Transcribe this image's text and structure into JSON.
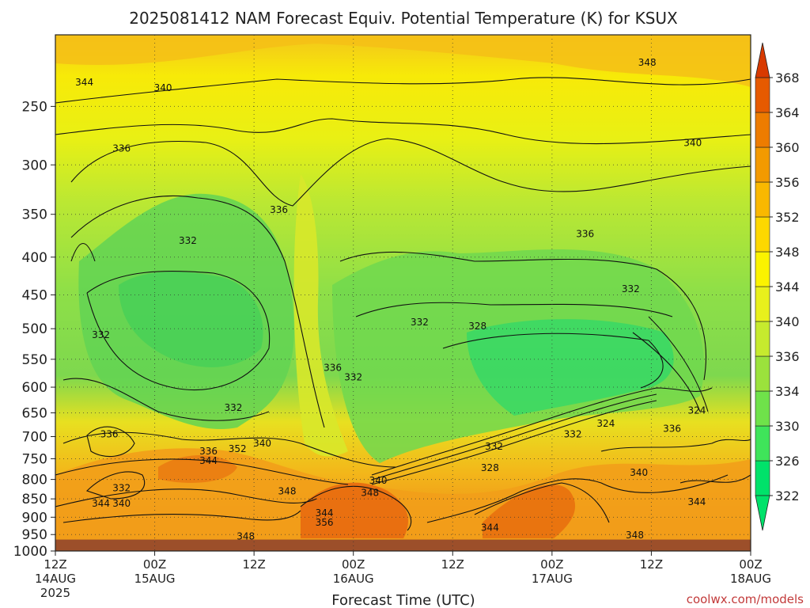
{
  "chart_data": {
    "type": "heatmap",
    "title": "2025081412 NAM Forecast Equiv. Potential Temperature (K) for KSUX",
    "xlabel": "Forecast Time (UTC)",
    "credit": "coolwx.com/models",
    "y_ticks": [
      250,
      300,
      350,
      400,
      450,
      500,
      550,
      600,
      650,
      700,
      750,
      800,
      850,
      900,
      950,
      1000
    ],
    "ylim": [
      200,
      1000
    ],
    "y_scale": "log-pressure (inverted)",
    "x_ticks": [
      {
        "hour": 0,
        "top": "12Z",
        "mid": "14AUG",
        "bot": "2025"
      },
      {
        "hour": 12,
        "top": "00Z",
        "mid": "15AUG",
        "bot": ""
      },
      {
        "hour": 24,
        "top": "12Z",
        "mid": "",
        "bot": ""
      },
      {
        "hour": 36,
        "top": "00Z",
        "mid": "16AUG",
        "bot": ""
      },
      {
        "hour": 48,
        "top": "12Z",
        "mid": "",
        "bot": ""
      },
      {
        "hour": 60,
        "top": "00Z",
        "mid": "17AUG",
        "bot": ""
      },
      {
        "hour": 72,
        "top": "12Z",
        "mid": "",
        "bot": ""
      },
      {
        "hour": 84,
        "top": "00Z",
        "mid": "18AUG",
        "bot": ""
      }
    ],
    "xlim": [
      0,
      84
    ],
    "grid": true,
    "ground_pressure": 965,
    "colorbar": {
      "levels": [
        322,
        326,
        330,
        334,
        336,
        340,
        344,
        348,
        352,
        356,
        360,
        364,
        368
      ],
      "colors": [
        "#00e26a",
        "#3fe45a",
        "#6fe24a",
        "#9be23c",
        "#c6ea2e",
        "#e8f01c",
        "#fbf300",
        "#fdd800",
        "#f9b800",
        "#f39a00",
        "#ed7c00",
        "#e65a00",
        "#d83a00"
      ],
      "positions": "right"
    },
    "contour_labels": [
      {
        "value": "344",
        "hour": 3.5,
        "p": 232
      },
      {
        "value": "340",
        "hour": 13,
        "p": 236
      },
      {
        "value": "348",
        "hour": 71.5,
        "p": 218
      },
      {
        "value": "336",
        "hour": 8,
        "p": 285
      },
      {
        "value": "340",
        "hour": 77,
        "p": 280
      },
      {
        "value": "336",
        "hour": 27,
        "p": 345
      },
      {
        "value": "332",
        "hour": 16,
        "p": 380
      },
      {
        "value": "336",
        "hour": 64,
        "p": 372
      },
      {
        "value": "332",
        "hour": 69.5,
        "p": 442
      },
      {
        "value": "332",
        "hour": 5.5,
        "p": 510
      },
      {
        "value": "332",
        "hour": 44,
        "p": 490
      },
      {
        "value": "328",
        "hour": 51,
        "p": 496
      },
      {
        "value": "336",
        "hour": 33.5,
        "p": 565
      },
      {
        "value": "332",
        "hour": 36,
        "p": 582
      },
      {
        "value": "332",
        "hour": 21.5,
        "p": 640
      },
      {
        "value": "324",
        "hour": 77.5,
        "p": 645
      },
      {
        "value": "336",
        "hour": 6.5,
        "p": 695
      },
      {
        "value": "324",
        "hour": 66.5,
        "p": 672
      },
      {
        "value": "336",
        "hour": 74.5,
        "p": 683
      },
      {
        "value": "332",
        "hour": 62.5,
        "p": 695
      },
      {
        "value": "340",
        "hour": 25,
        "p": 715
      },
      {
        "value": "352",
        "hour": 22,
        "p": 727
      },
      {
        "value": "336",
        "hour": 18.5,
        "p": 733
      },
      {
        "value": "332",
        "hour": 53,
        "p": 722
      },
      {
        "value": "344",
        "hour": 18.5,
        "p": 755
      },
      {
        "value": "328",
        "hour": 52.5,
        "p": 772
      },
      {
        "value": "340",
        "hour": 70.5,
        "p": 783
      },
      {
        "value": "340",
        "hour": 39,
        "p": 803
      },
      {
        "value": "332",
        "hour": 8,
        "p": 822
      },
      {
        "value": "348",
        "hour": 28,
        "p": 830
      },
      {
        "value": "348",
        "hour": 38,
        "p": 834
      },
      {
        "value": "344",
        "hour": 5.5,
        "p": 862
      },
      {
        "value": "340",
        "hour": 8,
        "p": 862
      },
      {
        "value": "344",
        "hour": 77.5,
        "p": 858
      },
      {
        "value": "344",
        "hour": 32.5,
        "p": 888
      },
      {
        "value": "356",
        "hour": 32.5,
        "p": 915
      },
      {
        "value": "344",
        "hour": 52.5,
        "p": 930
      },
      {
        "value": "348",
        "hour": 23,
        "p": 955
      },
      {
        "value": "348",
        "hour": 70,
        "p": 952
      }
    ]
  }
}
